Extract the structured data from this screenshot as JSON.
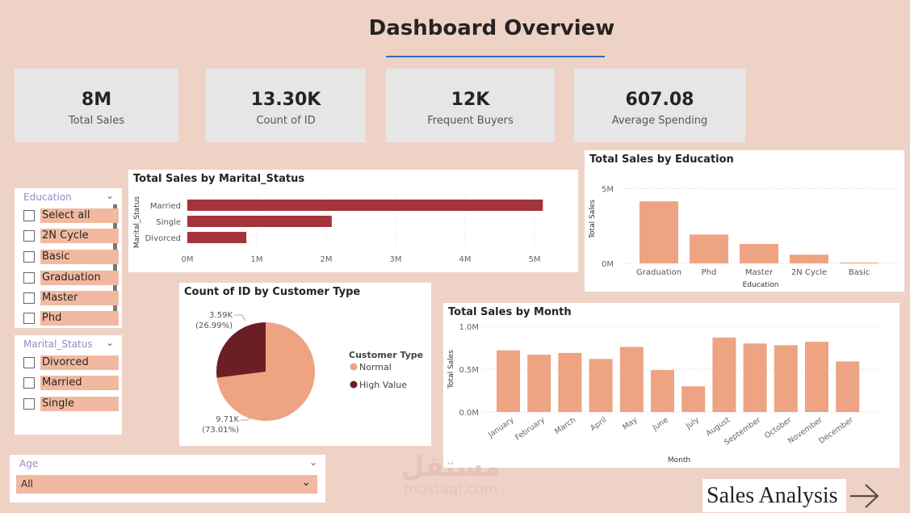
{
  "header": {
    "title": "Dashboard Overview"
  },
  "kpis": [
    {
      "value": "8M",
      "label": "Total Sales"
    },
    {
      "value": "13.30K",
      "label": "Count of ID"
    },
    {
      "value": "12K",
      "label": "Frequent Buyers"
    },
    {
      "value": "607.08",
      "label": "Average Spending"
    }
  ],
  "slicers": {
    "education": {
      "title": "Education",
      "items": [
        "Select all",
        "2N Cycle",
        "Basic",
        "Graduation",
        "Master",
        "Phd"
      ]
    },
    "marital": {
      "title": "Marital_Status",
      "items": [
        "Divorced",
        "Married",
        "Single"
      ]
    },
    "age": {
      "title": "Age",
      "selected": "All"
    }
  },
  "nav": {
    "label": "Sales Analysis",
    "icon": "arrow-right-icon"
  },
  "watermark": {
    "text": "مستقل",
    "sub": "mostaql.com"
  },
  "colors": {
    "bg": "#efd2c6",
    "bar_dark": "#a4343b",
    "bar_light": "#eea383",
    "pie_dark": "#6b1f25",
    "accent": "#2d6cb5"
  },
  "chart_data": [
    {
      "type": "bar",
      "orientation": "horizontal",
      "title": "Total Sales by Marital_Status",
      "ylabel": "Marital_Status",
      "categories": [
        "Married",
        "Single",
        "Divorced"
      ],
      "values": [
        5.12,
        2.08,
        0.85
      ],
      "unit": "M",
      "xlim": [
        0,
        5.3
      ],
      "ticks": [
        "0M",
        "1M",
        "2M",
        "3M",
        "4M",
        "5M"
      ],
      "grid": true
    },
    {
      "type": "bar",
      "title": "Total Sales by Education",
      "xlabel": "Education",
      "ylabel": "Total Sales",
      "categories": [
        "Graduation",
        "Phd",
        "Master",
        "2N Cycle",
        "Basic"
      ],
      "values": [
        4.15,
        1.93,
        1.3,
        0.58,
        0.04
      ],
      "unit": "M",
      "ylim": [
        0,
        5
      ],
      "ticks": [
        "0M",
        "5M"
      ],
      "grid": true
    },
    {
      "type": "pie",
      "title": "Count of ID by Customer Type",
      "legend_title": "Customer Type",
      "legend": "right",
      "slices": [
        {
          "name": "Normal",
          "value": 9.71,
          "label": "9.71K",
          "pct": "(73.01%)"
        },
        {
          "name": "High Value",
          "value": 3.59,
          "label": "3.59K",
          "pct": "(26.99%)"
        }
      ]
    },
    {
      "type": "bar",
      "title": "Total Sales by Month",
      "xlabel": "Month",
      "ylabel": "Total Sales",
      "categories": [
        "January",
        "February",
        "March",
        "April",
        "May",
        "June",
        "July",
        "August",
        "September",
        "October",
        "November",
        "December"
      ],
      "values": [
        0.72,
        0.67,
        0.69,
        0.62,
        0.76,
        0.49,
        0.3,
        0.87,
        0.8,
        0.78,
        0.82,
        0.59
      ],
      "unit": "M",
      "ylim": [
        0,
        1.0
      ],
      "ticks": [
        "0.0M",
        "0.5M",
        "1.0M"
      ],
      "grid": true
    }
  ]
}
